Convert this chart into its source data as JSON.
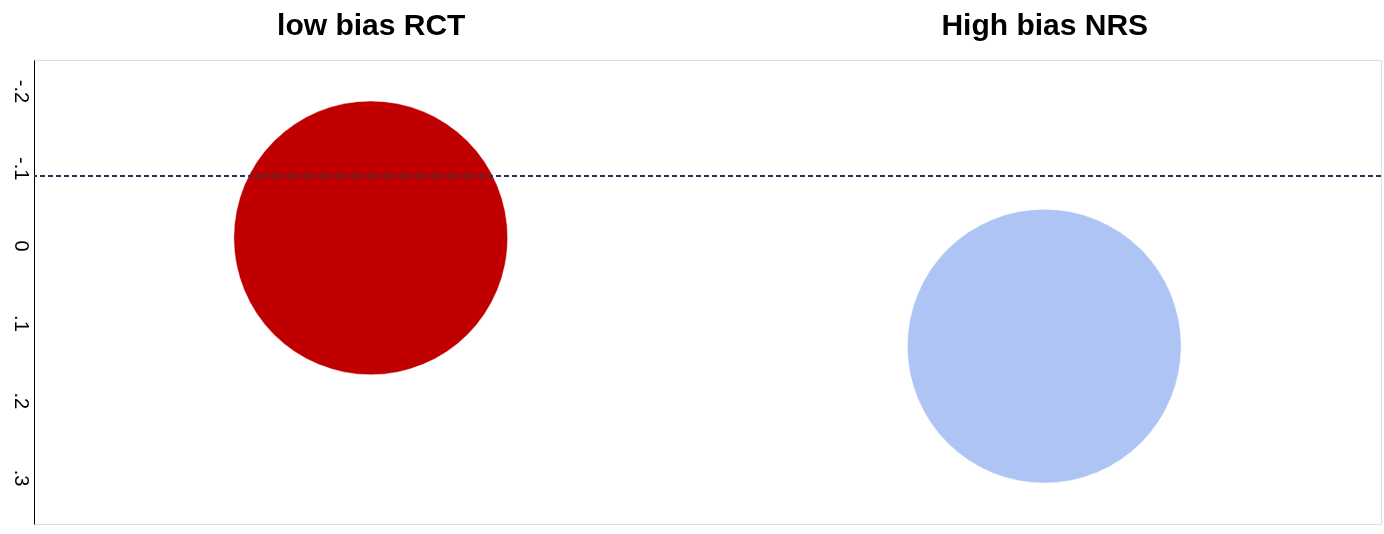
{
  "chart_data": {
    "type": "bubble",
    "categories": [
      "low bias RCT",
      "High bias NRS"
    ],
    "series": [
      {
        "values": [
          -0.01,
          0.13
        ],
        "sizes": [
          1,
          1
        ],
        "colors": [
          "#c00000",
          "#aec4f5"
        ]
      }
    ],
    "ylim": [
      0.36,
      -0.24
    ],
    "yticks": [
      {
        "value": -0.2,
        "label": "-.2"
      },
      {
        "value": -0.1,
        "label": "-.1"
      },
      0,
      {
        "value": 0.1,
        "label": ".1"
      },
      {
        "value": 0.2,
        "label": ".2"
      },
      {
        "value": 0.3,
        "label": ".3"
      }
    ],
    "ref_lines": [
      {
        "axis": "y",
        "value": -0.09,
        "label": null,
        "color": "#1f3864",
        "line_style": "dashed"
      }
    ],
    "grid": false
  }
}
